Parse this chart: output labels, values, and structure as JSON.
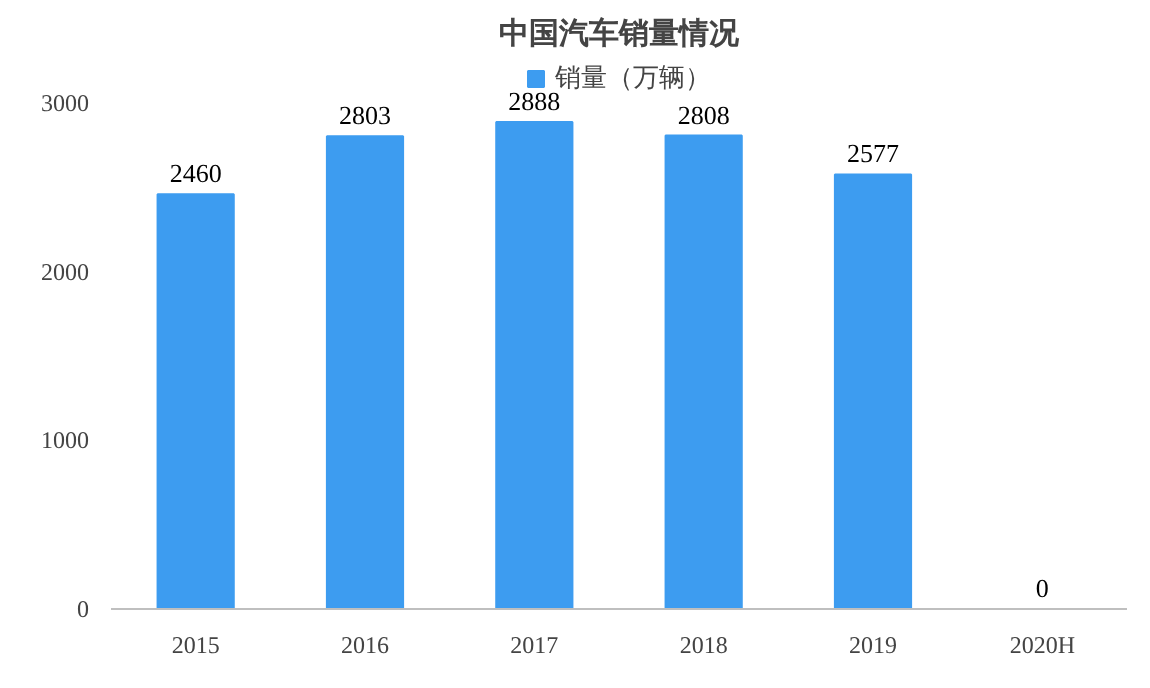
{
  "chart_data": {
    "type": "bar",
    "title": "中国汽车销量情况",
    "categories": [
      "2015",
      "2016",
      "2017",
      "2018",
      "2019",
      "2020H"
    ],
    "series": [
      {
        "name": "销量（万辆）",
        "color": "#3d9cf0",
        "values": [
          2460,
          2803,
          2888,
          2808,
          2577,
          0
        ]
      }
    ],
    "ylim": [
      0,
      3250
    ],
    "yticks": [
      0,
      1000,
      2000,
      3000
    ],
    "grid": false,
    "legend": "top",
    "data_labels": true
  }
}
